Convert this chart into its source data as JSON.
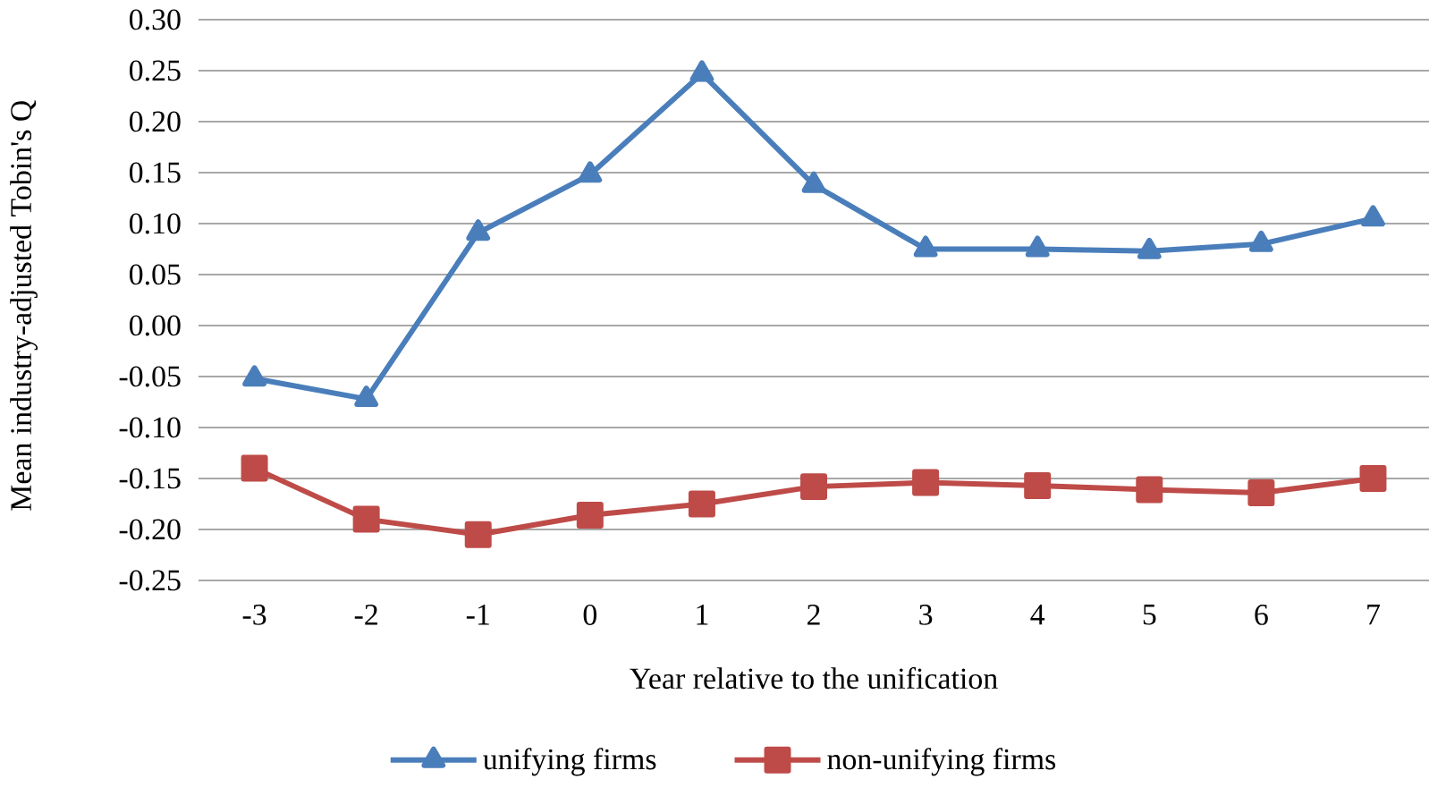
{
  "chart_data": {
    "type": "line",
    "xlabel": "Year relative to the unification",
    "ylabel": "Mean industry-adjusted Tobin's Q",
    "categories": [
      "-3",
      "-2",
      "-1",
      "0",
      "1",
      "2",
      "3",
      "4",
      "5",
      "6",
      "7"
    ],
    "series": [
      {
        "name": "unifying firms",
        "color": "#4a7ebb",
        "marker": "triangle",
        "values": [
          -0.052,
          -0.072,
          0.091,
          0.148,
          0.247,
          0.138,
          0.075,
          0.075,
          0.073,
          0.08,
          0.105
        ]
      },
      {
        "name": "non-unifying firms",
        "color": "#be4b48",
        "marker": "square",
        "values": [
          -0.14,
          -0.19,
          -0.205,
          -0.186,
          -0.175,
          -0.158,
          -0.154,
          -0.157,
          -0.161,
          -0.164,
          -0.15
        ]
      }
    ],
    "ylim": [
      -0.25,
      0.3
    ],
    "yticks": [
      {
        "value": -0.25,
        "label": "-0.25"
      },
      {
        "value": -0.2,
        "label": "-0.20"
      },
      {
        "value": -0.15,
        "label": "-0.15"
      },
      {
        "value": -0.1,
        "label": "-0.10"
      },
      {
        "value": -0.05,
        "label": "-0.05"
      },
      {
        "value": 0,
        "label": "0.00"
      },
      {
        "value": 0.05,
        "label": "0.05"
      },
      {
        "value": 0.1,
        "label": "0.10"
      },
      {
        "value": 0.15,
        "label": "0.15"
      },
      {
        "value": 0.2,
        "label": "0.20"
      },
      {
        "value": 0.25,
        "label": "0.25"
      },
      {
        "value": 0.3,
        "label": "0.30"
      }
    ],
    "grid": "y",
    "legend": "bottom",
    "line_style": "solid"
  }
}
